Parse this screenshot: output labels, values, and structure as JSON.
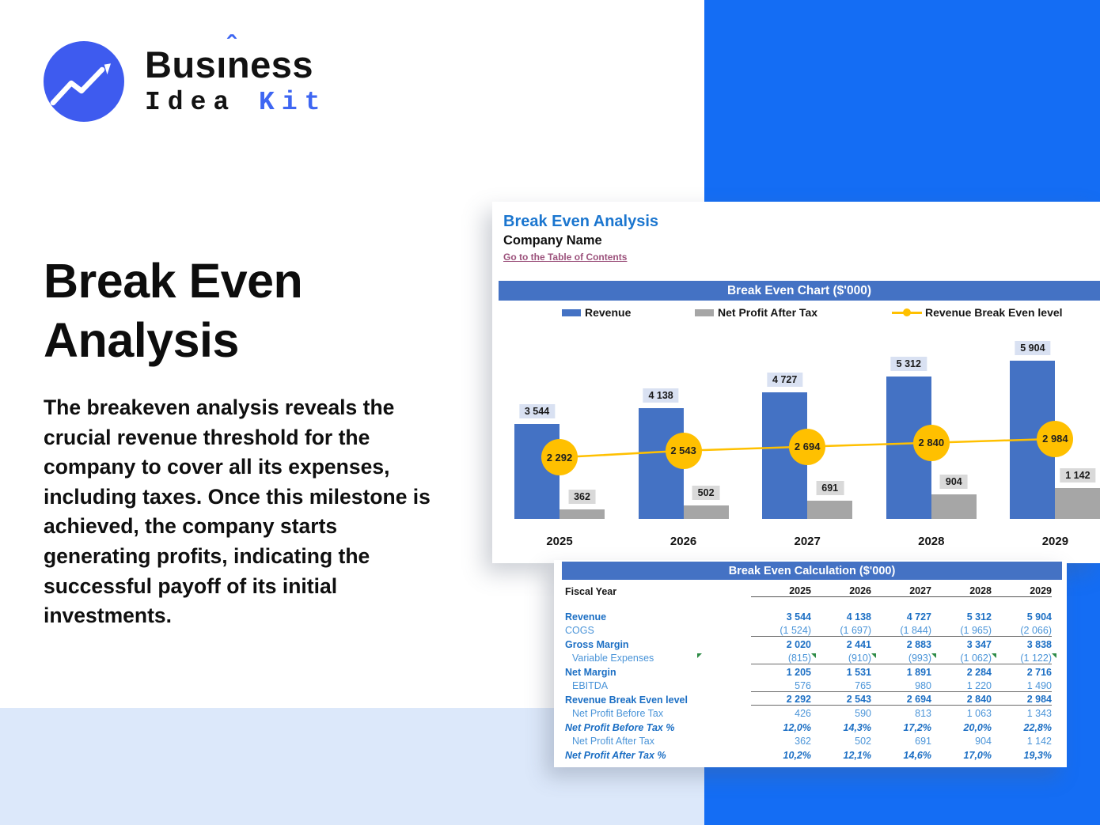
{
  "logo": {
    "brand_pre": "Bus",
    "brand_i": "ı",
    "brand_caret": "ˆ",
    "brand_post": "ness",
    "brand_bottom_black": "Idea",
    "brand_bottom_blue": "Kit"
  },
  "hero": {
    "title": "Break Even Analysis",
    "description": "The breakeven analysis reveals the crucial revenue threshold for the company to cover all its expenses, including taxes. Once this milestone is achieved, the company starts generating profits, indicating the successful payoff of its initial investments."
  },
  "sheet": {
    "title": "Break Even Analysis",
    "company": "Company Name",
    "link": "Go to the Table of Contents",
    "calc_header": "Break Even Calculation ($'000)"
  },
  "chart_data": {
    "type": "bar",
    "title": "Break Even Chart ($'000)",
    "categories": [
      "2025",
      "2026",
      "2027",
      "2028",
      "2029"
    ],
    "series": [
      {
        "name": "Revenue",
        "type": "bar",
        "color": "#4472C4",
        "label_bg": "#D9E1F2",
        "values": [
          3544,
          4138,
          4727,
          5312,
          5904
        ],
        "labels": [
          "3 544",
          "4 138",
          "4 727",
          "5 312",
          "5 904"
        ]
      },
      {
        "name": "Net Profit After Tax",
        "type": "bar",
        "color": "#A6A6A6",
        "label_bg": "#D9D9D9",
        "values": [
          362,
          502,
          691,
          904,
          1142
        ],
        "labels": [
          "362",
          "502",
          "691",
          "904",
          "1 142"
        ]
      },
      {
        "name": "Revenue Break Even level",
        "type": "line",
        "color": "#FFC000",
        "values": [
          2292,
          2543,
          2694,
          2840,
          2984
        ],
        "labels": [
          "2 292",
          "2 543",
          "2 694",
          "2 840",
          "2 984"
        ]
      }
    ],
    "ylim": [
      0,
      6600
    ],
    "grid": false,
    "legend_position": "top"
  },
  "calc_table": {
    "fiscal_year_label": "Fiscal Year",
    "years": [
      "2025",
      "2026",
      "2027",
      "2028",
      "2029"
    ],
    "rows": [
      {
        "label": "Revenue",
        "style": "bold",
        "values": [
          "3 544",
          "4 138",
          "4 727",
          "5 312",
          "5 904"
        ]
      },
      {
        "label": "COGS",
        "style": "regular",
        "underline": true,
        "values": [
          "(1 524)",
          "(1 697)",
          "(1 844)",
          "(1 965)",
          "(2 066)"
        ]
      },
      {
        "label": "Gross Margin",
        "style": "bold",
        "values": [
          "2 020",
          "2 441",
          "2 883",
          "3 347",
          "3 838"
        ]
      },
      {
        "label": "Variable Expenses",
        "style": "regular",
        "indent": true,
        "underline": true,
        "markers": true,
        "values": [
          "(815)",
          "(910)",
          "(993)",
          "(1 062)",
          "(1 122)"
        ]
      },
      {
        "label": "Net Margin",
        "style": "bold",
        "values": [
          "1 205",
          "1 531",
          "1 891",
          "2 284",
          "2 716"
        ]
      },
      {
        "label": "EBITDA",
        "style": "regular",
        "indent": true,
        "underline": true,
        "values": [
          "576",
          "765",
          "980",
          "1 220",
          "1 490"
        ]
      },
      {
        "label": "Revenue Break Even level",
        "style": "bold",
        "underline": true,
        "values": [
          "2 292",
          "2 543",
          "2 694",
          "2 840",
          "2 984"
        ]
      },
      {
        "label": "Net Profit Before Tax",
        "style": "regular",
        "indent": true,
        "values": [
          "426",
          "590",
          "813",
          "1 063",
          "1 343"
        ]
      },
      {
        "label": "Net Profit Before Tax %",
        "style": "bold-italic",
        "values": [
          "12,0%",
          "14,3%",
          "17,2%",
          "20,0%",
          "22,8%"
        ]
      },
      {
        "label": "Net Profit After Tax",
        "style": "regular",
        "indent": true,
        "values": [
          "362",
          "502",
          "691",
          "904",
          "1 142"
        ]
      },
      {
        "label": "Net Profit After Tax %",
        "style": "bold-italic",
        "values": [
          "10,2%",
          "12,1%",
          "14,6%",
          "17,0%",
          "19,3%"
        ]
      }
    ]
  },
  "colors": {
    "background_blue": "#146DF4",
    "light_band": "#DCE8FA",
    "excel_header_blue": "#4472C4",
    "bar_blue": "#4472C4",
    "bar_gray": "#A6A6A6",
    "line_yellow": "#FFC000",
    "logo_blue": "#3E66F2",
    "sheet_title_blue": "#1B76CF",
    "link_maroon": "#9C527C",
    "table_bold_blue": "#1C6FC4",
    "table_regular_blue": "#4A94D8"
  }
}
